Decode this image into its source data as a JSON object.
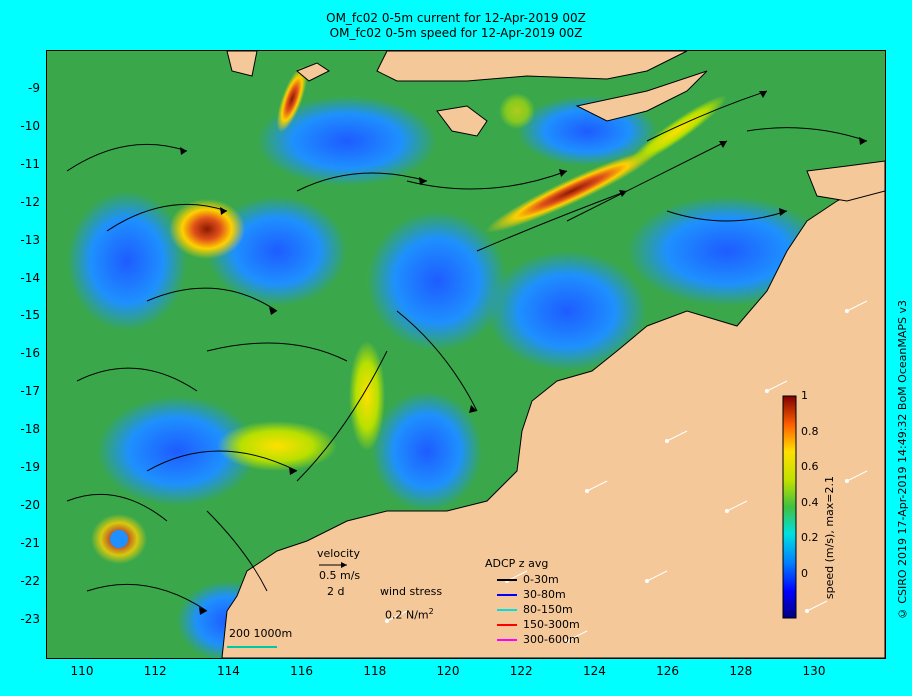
{
  "title_line1": "OM_fc02 0-5m current for 12-Apr-2019 00Z",
  "title_line2": "OM_fc02 0-5m speed for 12-Apr-2019 00Z",
  "y_ticks": [
    "-9",
    "-10",
    "-11",
    "-12",
    "-13",
    "-14",
    "-15",
    "-16",
    "-17",
    "-18",
    "-19",
    "-20",
    "-21",
    "-22",
    "-23"
  ],
  "x_ticks": [
    "110",
    "112",
    "114",
    "116",
    "118",
    "120",
    "122",
    "124",
    "126",
    "128",
    "130"
  ],
  "colorbar": {
    "ticks": [
      "1",
      "0.8",
      "0.6",
      "0.4",
      "0.2",
      "0"
    ],
    "label": "speed (m/s), max=2.1"
  },
  "credit": "© CSIRO 2019   17-Apr-2019 14:49:32 BoM OceanMAPS v3",
  "velocity_legend": {
    "title": "velocity",
    "speed": "0.5 m/s",
    "duration": "2 d"
  },
  "wind_legend": {
    "title": "wind stress",
    "value": "0.2 N/m",
    "superscript": "2"
  },
  "scale_bar": "200  1000m",
  "adcp": {
    "title": "ADCP z avg",
    "rows": [
      {
        "label": "0-30m",
        "color": "#000000"
      },
      {
        "label": "30-80m",
        "color": "#0000ff"
      },
      {
        "label": "80-150m",
        "color": "#00e0e0"
      },
      {
        "label": "150-300m",
        "color": "#ff0000"
      },
      {
        "label": "300-600m",
        "color": "#ff00ff"
      }
    ]
  },
  "colors": {
    "land": "#f5c89a",
    "ocean_mid": "#3aa84a",
    "background": "#00ffff"
  }
}
